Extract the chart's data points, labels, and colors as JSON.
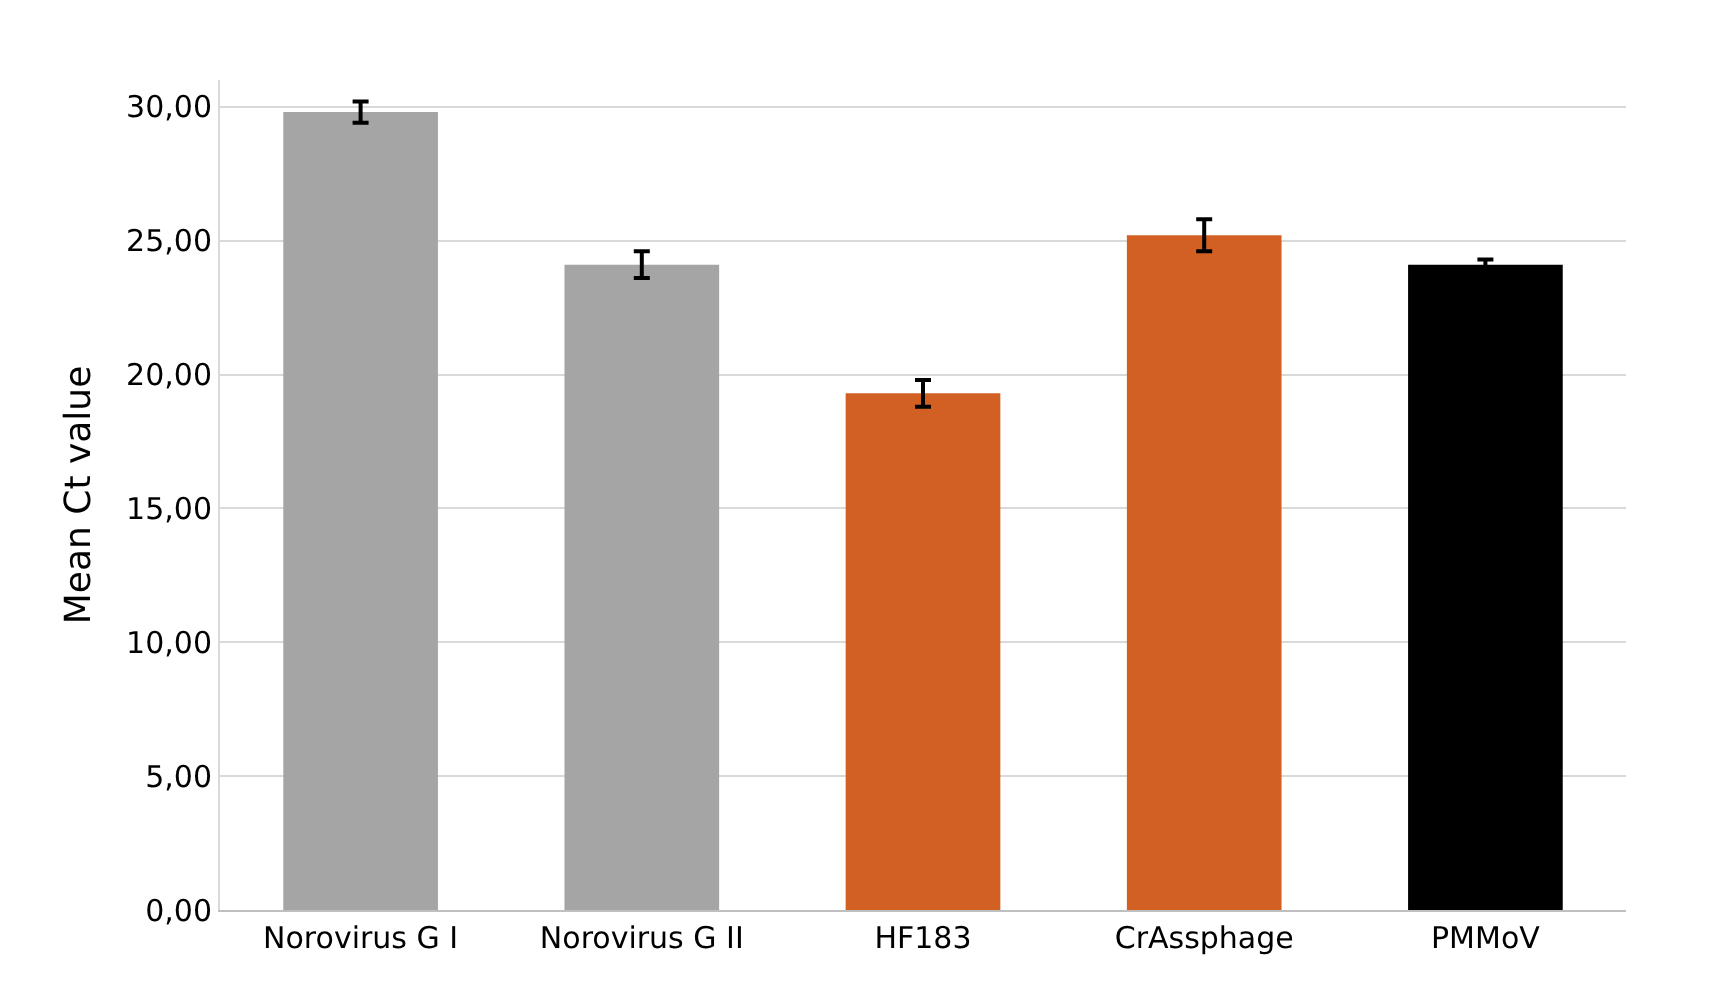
{
  "chart_data": {
    "type": "bar",
    "ylabel": "Mean Ct value",
    "categories": [
      "Norovirus G I",
      "Norovirus G II",
      "HF183",
      "CrAssphage",
      "PMMoV"
    ],
    "values": [
      29.8,
      24.1,
      19.3,
      25.2,
      24.1
    ],
    "colors": [
      "#a5a5a5",
      "#a5a5a5",
      "#d26023",
      "#d26023",
      "#000000"
    ],
    "errors": [
      0.4,
      0.5,
      0.5,
      0.6,
      0.2
    ],
    "ylim": [
      0,
      31
    ],
    "yticks": [
      {
        "value": 0,
        "label": "0,00"
      },
      {
        "value": 5,
        "label": "5,00"
      },
      {
        "value": 10,
        "label": "10,00"
      },
      {
        "value": 15,
        "label": "15,00"
      },
      {
        "value": 20,
        "label": "20,00"
      },
      {
        "value": 25,
        "label": "25,00"
      },
      {
        "value": 30,
        "label": "30,00"
      }
    ],
    "grid": "y",
    "legend": false
  }
}
